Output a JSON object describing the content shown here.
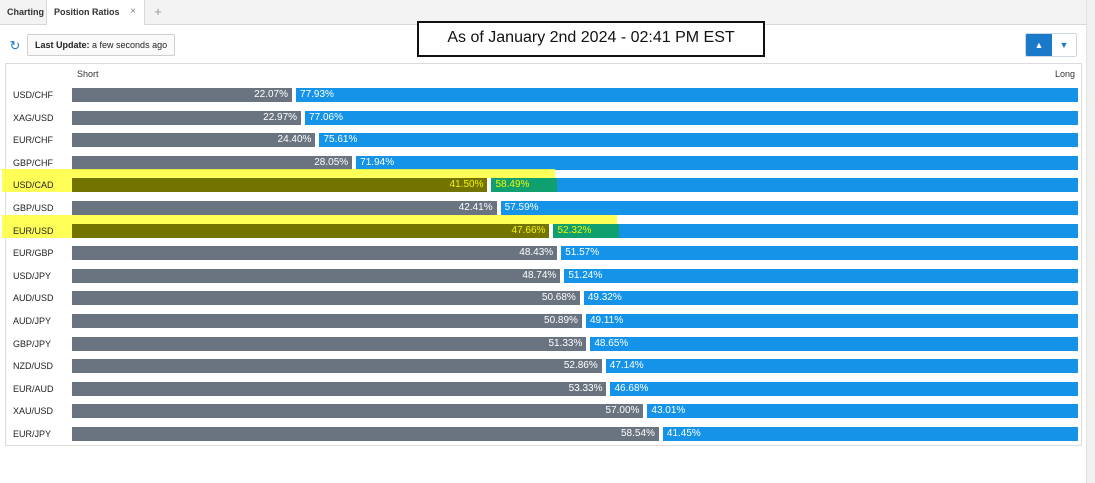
{
  "tabs": [
    {
      "label": "Charting"
    },
    {
      "label": "Position Ratios",
      "close": "×"
    }
  ],
  "add_tab_label": "+",
  "toolbar": {
    "refresh_icon": "↻",
    "last_update_label": "Last Update:",
    "last_update_value": "a few seconds ago",
    "sort_up_icon": "▲",
    "sort_down_icon": "▼"
  },
  "annotation": "As of January 2nd 2024 - 02:41 PM EST",
  "colors": {
    "short": "#6a7480",
    "long": "#1493e8",
    "highlight": "#ffff3a",
    "highlight_short": "#737300",
    "highlight_long": "#10a070"
  },
  "chart_data": {
    "type": "bar",
    "orientation": "horizontal",
    "stacked": true,
    "xlabel_left": "Short",
    "xlabel_right": "Long",
    "xlim": [
      0,
      100
    ],
    "categories": [
      "USD/CHF",
      "XAG/USD",
      "EUR/CHF",
      "GBP/CHF",
      "USD/CAD",
      "GBP/USD",
      "EUR/USD",
      "EUR/GBP",
      "USD/JPY",
      "AUD/USD",
      "AUD/JPY",
      "GBP/JPY",
      "NZD/USD",
      "EUR/AUD",
      "XAU/USD",
      "EUR/JPY"
    ],
    "series": [
      {
        "name": "Short",
        "values": [
          22.07,
          22.97,
          24.4,
          28.05,
          41.5,
          42.41,
          47.66,
          48.43,
          48.74,
          50.68,
          50.89,
          51.33,
          52.86,
          53.33,
          57.0,
          58.54
        ]
      },
      {
        "name": "Long",
        "values": [
          77.93,
          77.06,
          75.61,
          71.94,
          58.49,
          57.59,
          52.32,
          51.57,
          51.24,
          49.32,
          49.11,
          48.65,
          47.14,
          46.68,
          43.01,
          41.45
        ]
      }
    ],
    "short_labels": [
      "22.07%",
      "22.97%",
      "24.40%",
      "28.05%",
      "41.50%",
      "42.41%",
      "47.66%",
      "48.43%",
      "48.74%",
      "50.68%",
      "50.89%",
      "51.33%",
      "52.86%",
      "53.33%",
      "57.00%",
      "58.54%"
    ],
    "long_labels": [
      "77.93%",
      "77.06%",
      "75.61%",
      "71.94%",
      "58.49%",
      "57.59%",
      "52.32%",
      "51.57%",
      "51.24%",
      "49.32%",
      "49.11%",
      "48.65%",
      "47.14%",
      "46.68%",
      "43.01%",
      "41.45%"
    ],
    "highlighted": [
      "USD/CAD",
      "EUR/USD"
    ]
  }
}
